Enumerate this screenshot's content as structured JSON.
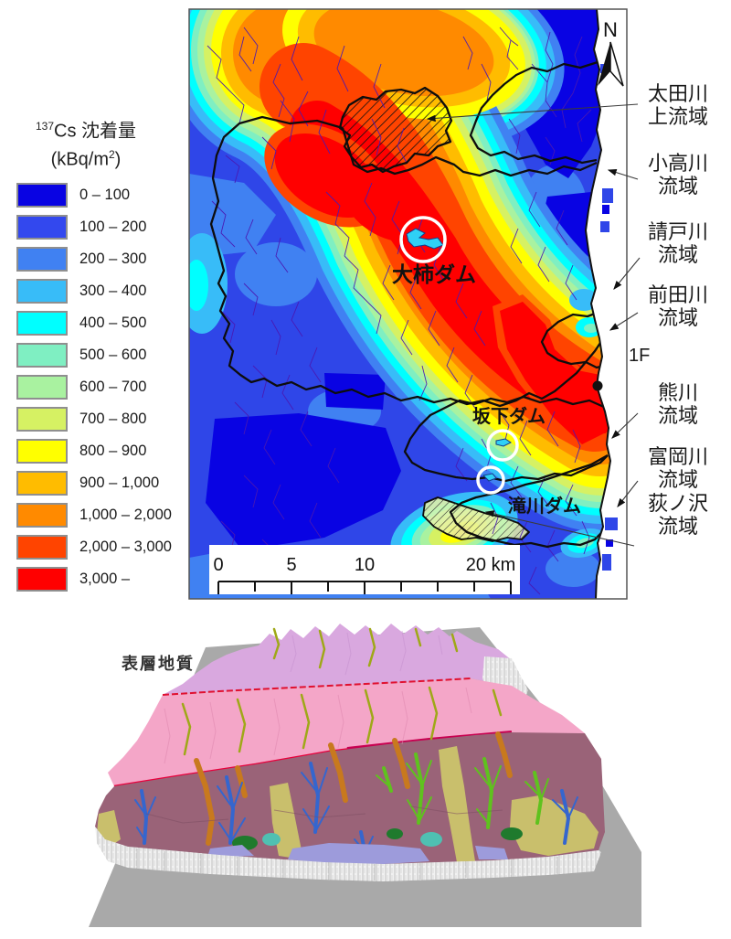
{
  "legend": {
    "title_sup": "137",
    "title_main": "Cs 沈着量",
    "unit_pre": "(kBq/m",
    "unit_sup": "2",
    "unit_post": ")",
    "items": [
      {
        "label": "0 – 100",
        "color": "#0903E3"
      },
      {
        "label": "100 – 200",
        "color": "#3348EE"
      },
      {
        "label": "200 – 300",
        "color": "#4081F2"
      },
      {
        "label": "300 – 400",
        "color": "#38BCF8"
      },
      {
        "label": "400 – 500",
        "color": "#00FFFF"
      },
      {
        "label": "500 – 600",
        "color": "#7FEFC2"
      },
      {
        "label": "600 – 700",
        "color": "#A9F2A0"
      },
      {
        "label": "700 – 800",
        "color": "#D6F163"
      },
      {
        "label": "800 – 900",
        "color": "#FFFF00"
      },
      {
        "label": "900 – 1,000",
        "color": "#FFBC00"
      },
      {
        "label": "1,000 – 2,000",
        "color": "#FF8A00"
      },
      {
        "label": "2,000 – 3,000",
        "color": "#FF4400"
      },
      {
        "label": "3,000 –",
        "color": "#FF0000"
      }
    ]
  },
  "map": {
    "north_label": "N",
    "plant_label": "1F",
    "scalebar": {
      "labels": [
        "0",
        "5",
        "10",
        "20 km"
      ]
    },
    "dams": [
      {
        "name": "大柿ダム"
      },
      {
        "name": "坂下ダム"
      },
      {
        "name": "滝川ダム"
      }
    ],
    "basins": [
      {
        "line1": "太田川",
        "line2": "上流域"
      },
      {
        "line1": "小高川",
        "line2": "流域"
      },
      {
        "line1": "請戸川",
        "line2": "流域"
      },
      {
        "line1": "前田川",
        "line2": "流域"
      },
      {
        "line1": "熊川",
        "line2": "流域"
      },
      {
        "line1": "富岡川",
        "line2": "流域"
      },
      {
        "line1": "荻ノ沢",
        "line2": "流域"
      }
    ]
  },
  "terrain": {
    "label": "表層地質"
  }
}
